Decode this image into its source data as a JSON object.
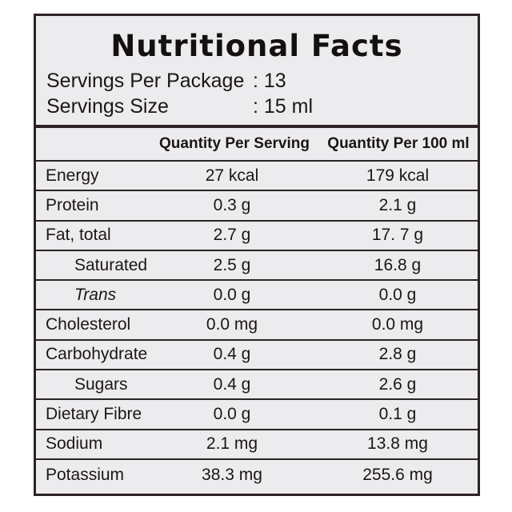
{
  "title": "Nutritional Facts",
  "servings": {
    "per_package_label": "Servings Per Package",
    "per_package_value": ": 13",
    "size_label": "Servings Size",
    "size_value": ": 15 ml"
  },
  "table": {
    "headers": [
      "",
      "Quantity Per Serving",
      "Quantity Per 100 ml"
    ],
    "rows": [
      {
        "name": "Energy",
        "per_serving": "27 kcal",
        "per_100ml": "179 kcal"
      },
      {
        "name": "Protein",
        "per_serving": "0.3 g",
        "per_100ml": "2.1 g"
      },
      {
        "name": "Fat, total",
        "per_serving": "2.7 g",
        "per_100ml": "17. 7 g"
      },
      {
        "name": "Saturated",
        "per_serving": "2.5 g",
        "per_100ml": "16.8 g"
      },
      {
        "name": "Trans",
        "per_serving": "0.0 g",
        "per_100ml": "0.0 g"
      },
      {
        "name": "Cholesterol",
        "per_serving": "0.0 mg",
        "per_100ml": "0.0 mg"
      },
      {
        "name": "Carbohydrate",
        "per_serving": "0.4 g",
        "per_100ml": "2.8 g"
      },
      {
        "name": "Sugars",
        "per_serving": "0.4 g",
        "per_100ml": "2.6 g"
      },
      {
        "name": "Dietary Fibre",
        "per_serving": "0.0 g",
        "per_100ml": "0.1 g"
      },
      {
        "name": "Sodium",
        "per_serving": "2.1 mg",
        "per_100ml": "13.8 mg"
      },
      {
        "name": "Potassium",
        "per_serving": "38.3 mg",
        "per_100ml": "255.6 mg"
      }
    ]
  },
  "colors": {
    "panel_background": "#ecebed",
    "border": "#2b2325",
    "text": "#1c1618"
  }
}
